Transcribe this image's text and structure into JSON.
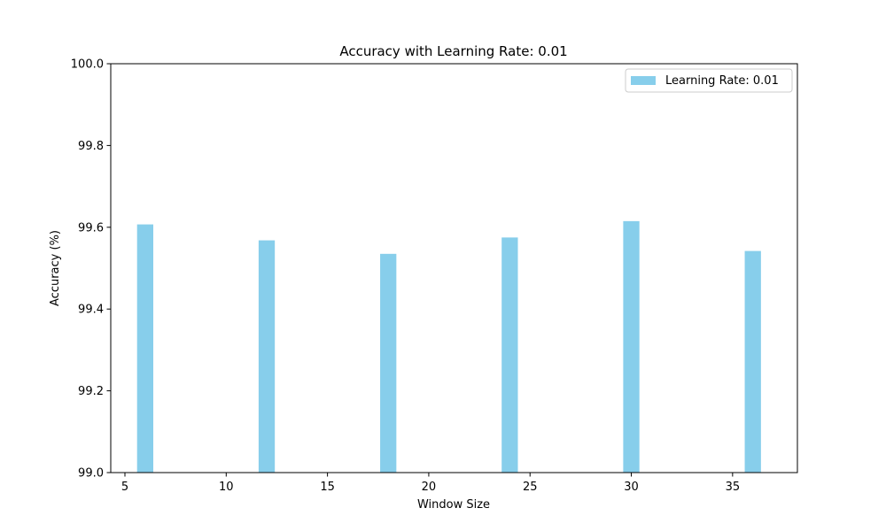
{
  "chart_data": {
    "type": "bar",
    "title": "Accuracy with Learning Rate: 0.01",
    "xlabel": "Window Size",
    "ylabel": "Accuracy (%)",
    "x": [
      6,
      12,
      18,
      24,
      30,
      36
    ],
    "series": [
      {
        "name": "Learning Rate: 0.01",
        "values": [
          99.607,
          99.568,
          99.535,
          99.575,
          99.615,
          99.542
        ],
        "color": "#87ceeb"
      }
    ],
    "bar_width_data": 0.8,
    "xlim": [
      4.3,
      38.2
    ],
    "ylim": [
      99.0,
      100.0
    ],
    "x_ticks": [
      5,
      10,
      15,
      20,
      25,
      30,
      35
    ],
    "x_tick_labels": [
      "5",
      "10",
      "15",
      "20",
      "25",
      "30",
      "35"
    ],
    "y_ticks": [
      99.0,
      99.2,
      99.4,
      99.6,
      99.8,
      100.0
    ],
    "y_tick_labels": [
      "99.0",
      "99.2",
      "99.4",
      "99.6",
      "99.8",
      "100.0"
    ],
    "grid": false,
    "legend_position": "top-right"
  }
}
